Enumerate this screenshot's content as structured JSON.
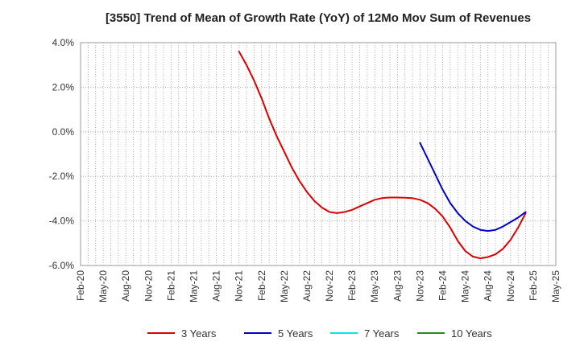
{
  "chart_data": {
    "type": "line",
    "title": "[3550]  Trend of Mean of Growth Rate (YoY) of 12Mo Mov Sum of Revenues",
    "xlabel": "",
    "ylabel": "",
    "x_ticks": [
      "Feb-20",
      "May-20",
      "Aug-20",
      "Nov-20",
      "Feb-21",
      "May-21",
      "Aug-21",
      "Nov-21",
      "Feb-22",
      "May-22",
      "Aug-22",
      "Nov-22",
      "Feb-23",
      "May-23",
      "Aug-23",
      "Nov-23",
      "Feb-24",
      "May-24",
      "Aug-24",
      "Nov-24",
      "Feb-25",
      "May-25"
    ],
    "y_ticks": [
      "4.0%",
      "2.0%",
      "0.0%",
      "-2.0%",
      "-4.0%",
      "-6.0%"
    ],
    "y_tick_values": [
      4,
      2,
      0,
      -2,
      -4,
      -6
    ],
    "ylim": [
      -6,
      4
    ],
    "x_range_months": [
      0,
      63
    ],
    "grid": true,
    "series": [
      {
        "name": "3 Years",
        "color": "#dd0000",
        "points": [
          [
            21,
            3.6
          ],
          [
            22,
            3.0
          ],
          [
            23,
            2.3
          ],
          [
            24,
            1.5
          ],
          [
            25,
            0.6
          ],
          [
            26,
            -0.2
          ],
          [
            27,
            -0.9
          ],
          [
            28,
            -1.6
          ],
          [
            29,
            -2.2
          ],
          [
            30,
            -2.7
          ],
          [
            31,
            -3.1
          ],
          [
            32,
            -3.4
          ],
          [
            33,
            -3.6
          ],
          [
            34,
            -3.65
          ],
          [
            35,
            -3.6
          ],
          [
            36,
            -3.5
          ],
          [
            37,
            -3.35
          ],
          [
            38,
            -3.2
          ],
          [
            39,
            -3.05
          ],
          [
            40,
            -2.97
          ],
          [
            41,
            -2.95
          ],
          [
            42,
            -2.95
          ],
          [
            43,
            -2.96
          ],
          [
            44,
            -2.98
          ],
          [
            45,
            -3.05
          ],
          [
            46,
            -3.2
          ],
          [
            47,
            -3.45
          ],
          [
            48,
            -3.8
          ],
          [
            49,
            -4.3
          ],
          [
            50,
            -4.9
          ],
          [
            51,
            -5.35
          ],
          [
            52,
            -5.6
          ],
          [
            53,
            -5.68
          ],
          [
            54,
            -5.62
          ],
          [
            55,
            -5.5
          ],
          [
            56,
            -5.25
          ],
          [
            57,
            -4.85
          ],
          [
            58,
            -4.3
          ],
          [
            59,
            -3.65
          ]
        ]
      },
      {
        "name": "5 Years",
        "color": "#0000cc",
        "points": [
          [
            45,
            -0.5
          ],
          [
            46,
            -1.2
          ],
          [
            47,
            -1.9
          ],
          [
            48,
            -2.6
          ],
          [
            49,
            -3.2
          ],
          [
            50,
            -3.65
          ],
          [
            51,
            -4.0
          ],
          [
            52,
            -4.25
          ],
          [
            53,
            -4.4
          ],
          [
            54,
            -4.45
          ],
          [
            55,
            -4.4
          ],
          [
            56,
            -4.25
          ],
          [
            57,
            -4.05
          ],
          [
            58,
            -3.85
          ],
          [
            59,
            -3.6
          ]
        ]
      },
      {
        "name": "7 Years",
        "color": "#00e5ee",
        "points": []
      },
      {
        "name": "10 Years",
        "color": "#228b22",
        "points": []
      }
    ]
  }
}
